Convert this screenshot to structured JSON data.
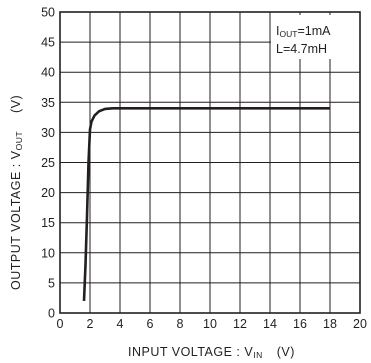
{
  "chart_data": {
    "type": "line",
    "title": "",
    "xlabel": "INPUT VOLTAGE : V",
    "xlabel_sub": "IN",
    "xlabel_unit": "(V)",
    "ylabel": "OUTPUT VOLTAGE : V",
    "ylabel_sub": "OUT",
    "ylabel_unit": "(V)",
    "xlim": [
      0,
      20
    ],
    "ylim": [
      0,
      50
    ],
    "x_ticks": [
      "0",
      "2",
      "4",
      "6",
      "8",
      "10",
      "12",
      "14",
      "16",
      "18",
      "20"
    ],
    "y_ticks": [
      "0",
      "5",
      "10",
      "15",
      "20",
      "25",
      "30",
      "35",
      "40",
      "45",
      "50"
    ],
    "grid": true,
    "annotations": [
      {
        "prefix": "I",
        "sub": "OUT",
        "rest": "=1mA"
      },
      {
        "prefix": "L=4.7mH",
        "sub": "",
        "rest": ""
      }
    ],
    "series": [
      {
        "color": "#231f20",
        "points": [
          [
            1.6,
            2
          ],
          [
            1.7,
            8
          ],
          [
            1.8,
            16
          ],
          [
            1.9,
            25
          ],
          [
            2.0,
            30.5
          ],
          [
            2.1,
            31.8
          ],
          [
            2.3,
            32.8
          ],
          [
            2.6,
            33.5
          ],
          [
            3.0,
            33.9
          ],
          [
            3.5,
            34
          ],
          [
            6,
            34
          ],
          [
            10,
            34
          ],
          [
            14,
            34
          ],
          [
            18,
            34
          ]
        ]
      }
    ]
  }
}
